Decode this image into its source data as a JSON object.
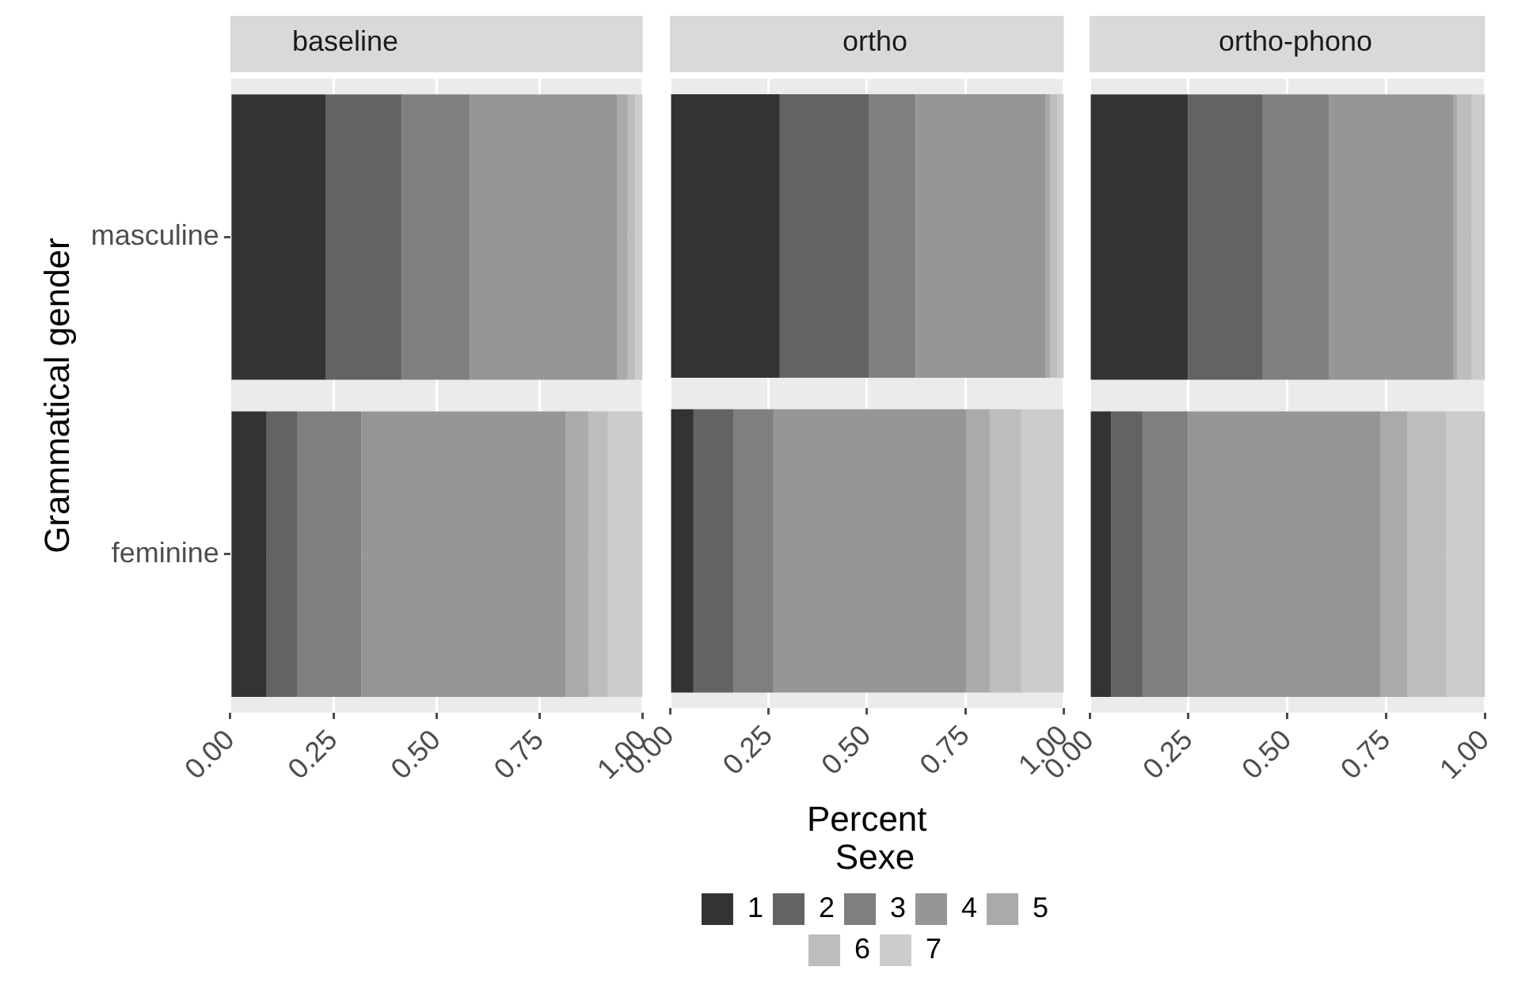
{
  "chart_data": [
    {
      "type": "bar",
      "orientation": "horizontal",
      "stacked": true,
      "title": "baseline",
      "ylabel": "Grammatical gender",
      "categories": [
        "masculine",
        "feminine"
      ],
      "xlim": [
        0,
        1
      ],
      "xticks": [
        {
          "value": 0,
          "label": "0.00"
        },
        {
          "value": 0.25,
          "label": "0.25"
        },
        {
          "value": 0.5,
          "label": "0.50"
        },
        {
          "value": 0.75,
          "label": "0.75"
        },
        {
          "value": 1,
          "label": "1.00"
        }
      ],
      "grid": true,
      "legend": false,
      "series": [
        {
          "color": "#333333",
          "values": [
            0.232,
            0.088
          ]
        },
        {
          "color": "#636363",
          "values": [
            0.184,
            0.075
          ]
        },
        {
          "color": "#7f7f7f",
          "values": [
            0.165,
            0.155
          ]
        },
        {
          "color": "#969696",
          "values": [
            0.358,
            0.496
          ]
        },
        {
          "color": "#aaaaaa",
          "values": [
            0.025,
            0.055
          ]
        },
        {
          "color": "#bdbdbd",
          "values": [
            0.018,
            0.047
          ]
        },
        {
          "color": "#cccccc",
          "values": [
            0.018,
            0.084
          ]
        }
      ]
    },
    {
      "type": "bar",
      "orientation": "horizontal",
      "stacked": true,
      "title": "ortho",
      "xlabel": "Percent",
      "legend_title": "Sexe",
      "categories": [
        null,
        null
      ],
      "xlim": [
        0,
        1
      ],
      "xticks": [
        {
          "value": 0,
          "label": "0.00"
        },
        {
          "value": 0.25,
          "label": "0.25"
        },
        {
          "value": 0.5,
          "label": "0.50"
        },
        {
          "value": 0.75,
          "label": "0.75"
        },
        {
          "value": 1,
          "label": "1.00"
        }
      ],
      "grid": true,
      "legend": "bottom",
      "tick_labels": "x",
      "series": [
        {
          "name": "1",
          "color": "#333333",
          "values": [
            0.279,
            0.06
          ]
        },
        {
          "name": "2",
          "color": "#636363",
          "values": [
            0.227,
            0.101
          ]
        },
        {
          "name": "3",
          "color": "#7f7f7f",
          "values": [
            0.118,
            0.102
          ]
        },
        {
          "name": "4",
          "color": "#969696",
          "values": [
            0.329,
            0.489
          ]
        },
        {
          "name": "5",
          "color": "#aaaaaa",
          "values": [
            0.013,
            0.06
          ]
        },
        {
          "name": "6",
          "color": "#bdbdbd",
          "values": [
            0.018,
            0.08
          ]
        },
        {
          "name": "7",
          "color": "#cccccc",
          "values": [
            0.016,
            0.108
          ]
        }
      ]
    },
    {
      "type": "bar",
      "orientation": "horizontal",
      "stacked": true,
      "title": "ortho-phono",
      "categories": [
        null,
        null
      ],
      "xlim": [
        0,
        1
      ],
      "xticks": [
        {
          "value": 0,
          "label": "0.00"
        },
        {
          "value": 0.25,
          "label": "0.25"
        },
        {
          "value": 0.5,
          "label": "0.50"
        },
        {
          "value": 0.75,
          "label": "0.75"
        },
        {
          "value": 1,
          "label": "1.00"
        }
      ],
      "grid": true,
      "legend": false,
      "tick_labels": "x",
      "series": [
        {
          "color": "#333333",
          "values": [
            0.249,
            0.055
          ]
        },
        {
          "color": "#636363",
          "values": [
            0.189,
            0.079
          ]
        },
        {
          "color": "#7f7f7f",
          "values": [
            0.168,
            0.115
          ]
        },
        {
          "color": "#969696",
          "values": [
            0.313,
            0.486
          ]
        },
        {
          "color": "#aaaaaa",
          "values": [
            0.01,
            0.069
          ]
        },
        {
          "color": "#bdbdbd",
          "values": [
            0.037,
            0.098
          ]
        },
        {
          "color": "#cccccc",
          "values": [
            0.034,
            0.098
          ]
        }
      ]
    }
  ]
}
